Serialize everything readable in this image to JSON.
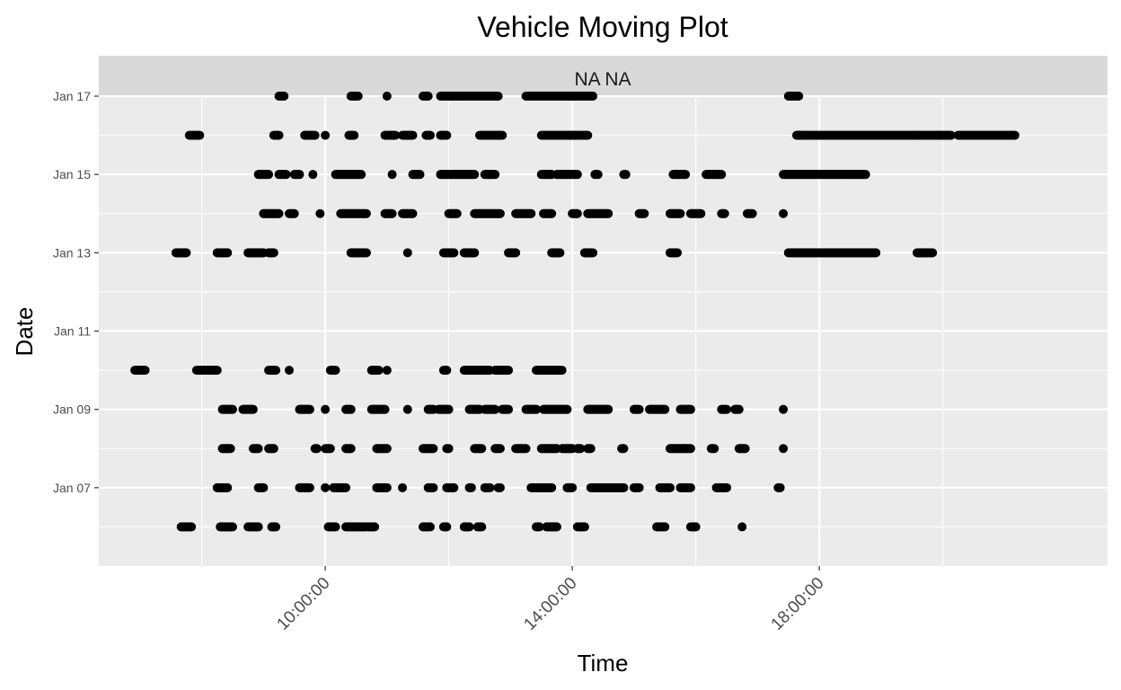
{
  "chart_data": {
    "type": "scatter",
    "title": "Vehicle Moving Plot",
    "facet_label": "NA NA",
    "xlabel": "Time",
    "ylabel": "Date",
    "x_ticks": [
      "10:00:00",
      "14:00:00",
      "18:00:00"
    ],
    "y_ticks": [
      "Jan 07",
      "Jan 09",
      "Jan 11",
      "Jan 13",
      "Jan 15",
      "Jan 17"
    ],
    "xlim": [
      "06:20:00",
      "22:40:00"
    ],
    "ylim": [
      "2015-01-05",
      "2015-01-17"
    ],
    "grid": true,
    "point_color": "#000000",
    "panel_background": "#ebebeb",
    "strip_background": "#d9d9d9",
    "series": [
      {
        "date": "2015-01-17",
        "runs": [
          [
            "09:15",
            "09:20"
          ],
          [
            "10:25",
            "10:32"
          ],
          [
            "11:00",
            "11:00"
          ],
          [
            "11:35",
            "11:40"
          ],
          [
            "11:52",
            "12:48"
          ],
          [
            "13:15",
            "14:20"
          ],
          [
            "17:30",
            "17:40"
          ]
        ]
      },
      {
        "date": "2015-01-16",
        "runs": [
          [
            "07:48",
            "07:58"
          ],
          [
            "09:10",
            "09:15"
          ],
          [
            "09:40",
            "09:50"
          ],
          [
            "10:00",
            "10:00"
          ],
          [
            "10:23",
            "10:28"
          ],
          [
            "10:58",
            "11:08"
          ],
          [
            "11:15",
            "11:25"
          ],
          [
            "11:38",
            "11:42"
          ],
          [
            "11:52",
            "11:58"
          ],
          [
            "12:30",
            "12:52"
          ],
          [
            "13:30",
            "14:15"
          ],
          [
            "17:38",
            "20:08"
          ],
          [
            "20:15",
            "21:10"
          ]
        ]
      },
      {
        "date": "2015-01-15",
        "runs": [
          [
            "08:55",
            "09:05"
          ],
          [
            "09:15",
            "09:22"
          ],
          [
            "09:30",
            "09:35"
          ],
          [
            "09:48",
            "09:48"
          ],
          [
            "10:10",
            "10:35"
          ],
          [
            "11:05",
            "11:05"
          ],
          [
            "11:25",
            "11:32"
          ],
          [
            "11:52",
            "12:25"
          ],
          [
            "12:35",
            "12:45"
          ],
          [
            "13:30",
            "13:40"
          ],
          [
            "13:45",
            "14:05"
          ],
          [
            "14:22",
            "14:25"
          ],
          [
            "14:50",
            "14:52"
          ],
          [
            "15:38",
            "15:50"
          ],
          [
            "16:10",
            "16:25"
          ],
          [
            "17:25",
            "18:45"
          ]
        ]
      },
      {
        "date": "2015-01-14",
        "runs": [
          [
            "09:00",
            "09:15"
          ],
          [
            "09:25",
            "09:30"
          ],
          [
            "09:55",
            "09:55"
          ],
          [
            "10:15",
            "10:40"
          ],
          [
            "10:58",
            "11:05"
          ],
          [
            "11:15",
            "11:25"
          ],
          [
            "12:00",
            "12:08"
          ],
          [
            "12:25",
            "12:50"
          ],
          [
            "13:05",
            "13:20"
          ],
          [
            "13:32",
            "13:40"
          ],
          [
            "14:00",
            "14:05"
          ],
          [
            "14:15",
            "14:35"
          ],
          [
            "15:05",
            "15:10"
          ],
          [
            "15:35",
            "15:45"
          ],
          [
            "15:55",
            "16:05"
          ],
          [
            "16:25",
            "16:28"
          ],
          [
            "16:50",
            "16:55"
          ],
          [
            "17:25",
            "17:25"
          ]
        ]
      },
      {
        "date": "2015-01-13",
        "runs": [
          [
            "07:35",
            "07:45"
          ],
          [
            "08:15",
            "08:25"
          ],
          [
            "08:45",
            "09:00"
          ],
          [
            "09:05",
            "09:10"
          ],
          [
            "10:25",
            "10:40"
          ],
          [
            "11:20",
            "11:20"
          ],
          [
            "11:55",
            "12:05"
          ],
          [
            "12:15",
            "12:25"
          ],
          [
            "12:58",
            "13:05"
          ],
          [
            "13:40",
            "13:48"
          ],
          [
            "14:12",
            "14:20"
          ],
          [
            "15:35",
            "15:42"
          ],
          [
            "17:30",
            "18:55"
          ],
          [
            "19:35",
            "19:50"
          ]
        ]
      },
      {
        "date": "2015-01-10",
        "runs": [
          [
            "06:55",
            "07:05"
          ],
          [
            "07:55",
            "08:15"
          ],
          [
            "09:05",
            "09:12"
          ],
          [
            "09:25",
            "09:25"
          ],
          [
            "10:05",
            "10:10"
          ],
          [
            "10:45",
            "10:52"
          ],
          [
            "11:00",
            "11:00"
          ],
          [
            "11:55",
            "11:58"
          ],
          [
            "12:15",
            "12:40"
          ],
          [
            "12:45",
            "12:58"
          ],
          [
            "13:25",
            "13:50"
          ]
        ]
      },
      {
        "date": "2015-01-09",
        "runs": [
          [
            "08:20",
            "08:30"
          ],
          [
            "08:40",
            "08:50"
          ],
          [
            "09:35",
            "09:45"
          ],
          [
            "10:00",
            "10:00"
          ],
          [
            "10:20",
            "10:25"
          ],
          [
            "10:45",
            "10:58"
          ],
          [
            "11:20",
            "11:20"
          ],
          [
            "11:40",
            "11:45"
          ],
          [
            "11:50",
            "12:00"
          ],
          [
            "12:20",
            "12:30"
          ],
          [
            "12:35",
            "12:45"
          ],
          [
            "12:52",
            "12:58"
          ],
          [
            "13:15",
            "13:25"
          ],
          [
            "13:32",
            "13:55"
          ],
          [
            "14:15",
            "14:35"
          ],
          [
            "15:00",
            "15:05"
          ],
          [
            "15:15",
            "15:30"
          ],
          [
            "15:45",
            "15:55"
          ],
          [
            "16:25",
            "16:30"
          ],
          [
            "16:38",
            "16:42"
          ],
          [
            "17:25",
            "17:25"
          ]
        ]
      },
      {
        "date": "2015-01-08",
        "runs": [
          [
            "08:20",
            "08:28"
          ],
          [
            "08:50",
            "08:55"
          ],
          [
            "09:05",
            "09:10"
          ],
          [
            "09:50",
            "09:52"
          ],
          [
            "10:00",
            "10:05"
          ],
          [
            "10:20",
            "10:25"
          ],
          [
            "10:50",
            "11:00"
          ],
          [
            "11:35",
            "11:45"
          ],
          [
            "11:58",
            "12:00"
          ],
          [
            "12:25",
            "12:32"
          ],
          [
            "12:45",
            "12:50"
          ],
          [
            "13:05",
            "13:15"
          ],
          [
            "13:30",
            "13:45"
          ],
          [
            "13:50",
            "14:00"
          ],
          [
            "14:05",
            "14:08"
          ],
          [
            "14:15",
            "14:18"
          ],
          [
            "14:48",
            "14:50"
          ],
          [
            "15:35",
            "15:55"
          ],
          [
            "16:15",
            "16:18"
          ],
          [
            "16:42",
            "16:48"
          ],
          [
            "17:25",
            "17:25"
          ]
        ]
      },
      {
        "date": "2015-01-07",
        "runs": [
          [
            "08:15",
            "08:25"
          ],
          [
            "08:55",
            "09:00"
          ],
          [
            "09:35",
            "09:45"
          ],
          [
            "10:00",
            "10:00"
          ],
          [
            "10:08",
            "10:20"
          ],
          [
            "10:50",
            "11:00"
          ],
          [
            "11:15",
            "11:15"
          ],
          [
            "11:40",
            "11:45"
          ],
          [
            "11:58",
            "12:05"
          ],
          [
            "12:20",
            "12:22"
          ],
          [
            "12:35",
            "12:40"
          ],
          [
            "12:48",
            "12:50"
          ],
          [
            "13:20",
            "13:40"
          ],
          [
            "13:55",
            "14:00"
          ],
          [
            "14:18",
            "14:50"
          ],
          [
            "15:00",
            "15:05"
          ],
          [
            "15:25",
            "15:35"
          ],
          [
            "15:45",
            "15:55"
          ],
          [
            "16:20",
            "16:30"
          ],
          [
            "17:20",
            "17:22"
          ]
        ]
      },
      {
        "date": "2015-01-06",
        "runs": [
          [
            "07:40",
            "07:50"
          ],
          [
            "08:18",
            "08:30"
          ],
          [
            "08:45",
            "08:55"
          ],
          [
            "09:08",
            "09:12"
          ],
          [
            "10:03",
            "10:10"
          ],
          [
            "10:20",
            "10:40"
          ],
          [
            "10:42",
            "10:48"
          ],
          [
            "11:35",
            "11:42"
          ],
          [
            "11:55",
            "11:58"
          ],
          [
            "12:15",
            "12:20"
          ],
          [
            "12:28",
            "12:32"
          ],
          [
            "13:25",
            "13:28"
          ],
          [
            "13:35",
            "13:45"
          ],
          [
            "14:05",
            "14:12"
          ],
          [
            "15:22",
            "15:30"
          ],
          [
            "15:55",
            "16:00"
          ],
          [
            "16:45",
            "16:45"
          ]
        ]
      }
    ]
  }
}
